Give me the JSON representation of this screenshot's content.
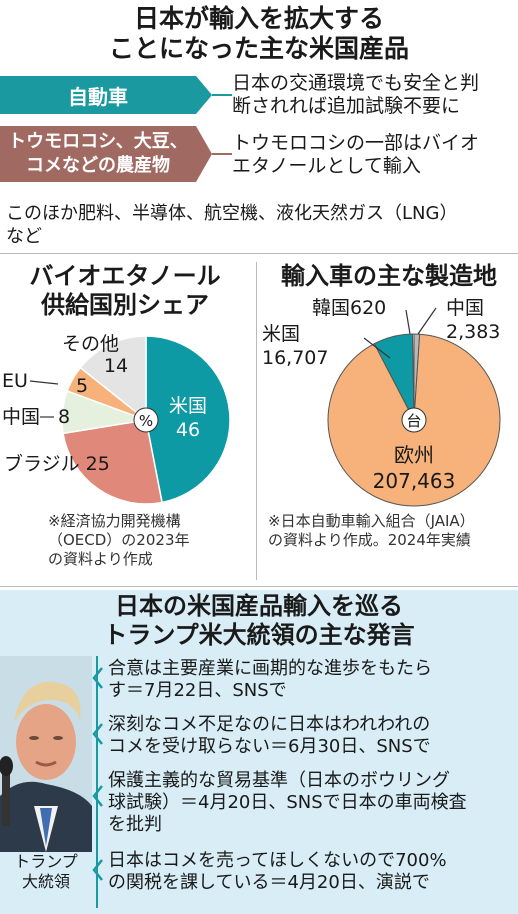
{
  "header": {
    "title_line1": "日本が輸入を拡大する",
    "title_line2": "ことになった主な米国産品"
  },
  "products": [
    {
      "name": "自動車",
      "desc_line1": "日本の交通環境でも安全と判",
      "desc_line2": "断されれば追加試験不要に",
      "color": "#1a9aa0"
    },
    {
      "name_line1": "トウモロコシ、大豆、",
      "name_line2": "コメなどの農産物",
      "desc_line1": "トウモロコシの一部はバイオ",
      "desc_line2": "エタノールとして輸入",
      "color": "#a06a62"
    }
  ],
  "other_note": {
    "line1": "このほか肥料、半導体、航空機、液化天然ガス（LNG）",
    "line2": "など"
  },
  "chart_data": [
    {
      "type": "pie",
      "title_line1": "バイオエタノール",
      "title_line2": "供給国別シェア",
      "unit_label": "%",
      "slices": [
        {
          "name": "米国",
          "value": 46,
          "color": "#0d9aa4"
        },
        {
          "name": "ブラジル",
          "value": 25,
          "color": "#e0887a"
        },
        {
          "name": "中国",
          "value": 8,
          "color": "#e6f0de"
        },
        {
          "name": "EU",
          "value": 5,
          "color": "#f6b27a"
        },
        {
          "name": "その他",
          "value": 14,
          "color": "#e4e4e4"
        }
      ],
      "source_line1": "※経済協力開発機構",
      "source_line2": "（OECD）の2023年",
      "source_line3": "の資料より作成"
    },
    {
      "type": "pie",
      "title": "輸入車の主な製造地",
      "unit_label": "台",
      "slices": [
        {
          "name": "欧州",
          "value": 207463,
          "value_label": "207,463",
          "color": "#f6b27a"
        },
        {
          "name": "米国",
          "value": 16707,
          "value_label": "16,707",
          "color": "#0d9aa4"
        },
        {
          "name": "韓国",
          "value": 620,
          "value_label": "620",
          "color": "#ffffff"
        },
        {
          "name": "中国",
          "value": 2383,
          "value_label": "2,383",
          "color": "#b8b8b8"
        }
      ],
      "source_line1": "※日本自動車輸入組合（JAIA）",
      "source_line2": "の資料より作成。2024年実績"
    }
  ],
  "quotes_section": {
    "title_line1": "日本の米国産品輸入を巡る",
    "title_line2": "トランプ米大統領の主な発言",
    "photo_caption_line1": "トランプ",
    "photo_caption_line2": "大統領",
    "quotes": [
      {
        "line1": "合意は主要産業に画期的な進歩をもたら",
        "line2": "す＝7月22日、SNSで"
      },
      {
        "line1": "深刻なコメ不足なのに日本はわれわれの",
        "line2": "コメを受け取らない＝6月30日、SNSで"
      },
      {
        "line1": "保護主義的な貿易基準（日本のボウリング",
        "line2": "球試験）＝4月20日、SNSで日本の車両検査",
        "line3": "を批判"
      },
      {
        "line1": "日本はコメを売ってほしくないので700%",
        "line2": "の関税を課している＝4月20日、演説で"
      }
    ],
    "bg_color": "#d8edf5",
    "accent_color": "#1a9aa0"
  }
}
